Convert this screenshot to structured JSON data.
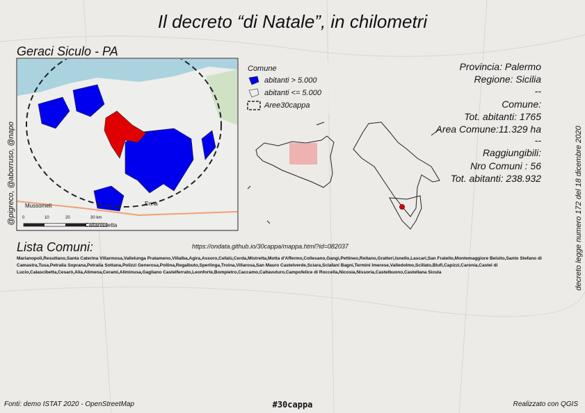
{
  "title": "Il decreto “di Natale”, in chilometri",
  "subtitle": "Geraci Siculo - PA",
  "legend": {
    "title": "Comune",
    "items": [
      "abitanti > 5.000",
      "abitanti <= 5.000",
      "Aree30cappa"
    ]
  },
  "map_labels": [
    "Mussomeli",
    "Enna",
    "Caltanissetta"
  ],
  "scale": [
    "0",
    "10",
    "20",
    "30 km"
  ],
  "info": [
    "Provincia: Palermo",
    "Regione: Sicilia",
    "--",
    "Comune:",
    "Tot. abitanti: 1765",
    "Area Comune:11.329 ha",
    "--",
    "Raggiungibili:",
    "Nro Comuni : 56",
    "Tot. abitanti: 238.932"
  ],
  "credits_left": "@pigreco, @aborruso, @napo",
  "credits_right": "decreto legge numero 172 del 18 dicembre 2020",
  "list": {
    "title": "Lista Comuni:",
    "url": "https://ondata.github.io/30cappa/mappa.html?id=082037",
    "text": "Marianopoli,Resuttano,Santa Caterina Villarmosa,Vallelunga Pratameno,Villalba,Agira,Assoro,Cefalù,Cerda,Mistretta,Motta d'Affermo,Collesano,Gangi,Pettineo,Reitano,Gratteri,Isnello,Lascari,San Fratello,Montemaggiore Belsito,Santo Stefano di Camastra,Tusa,Petralia Soprana,Petralia Sottana,Polizzi Generosa,Pollina,Regalbuto,Sperlinga,Troina,Villarosa,San Mauro Castelverde,Sciara,Sclafani Bagni,Termini Imerese,Valledolmo,Scillato,Blufi,Capizzi,Caronia,Castel di Lucio,Calascibetta,Cesarò,Alia,Alimena,Cerami,Aliminusa,Gagliano Castelferrato,Leonforte,Bompietro,Caccamo,Caltavuturo,Campofelice di Roccella,Nicosia,Nissoria,Castelbuono,Castellana Sicula"
  },
  "footer": {
    "sources": "Fonti: demo ISTAT 2020 - OpenStreetMap",
    "hashtag": "#30cappa",
    "software": "Realizzato con QGIS"
  }
}
